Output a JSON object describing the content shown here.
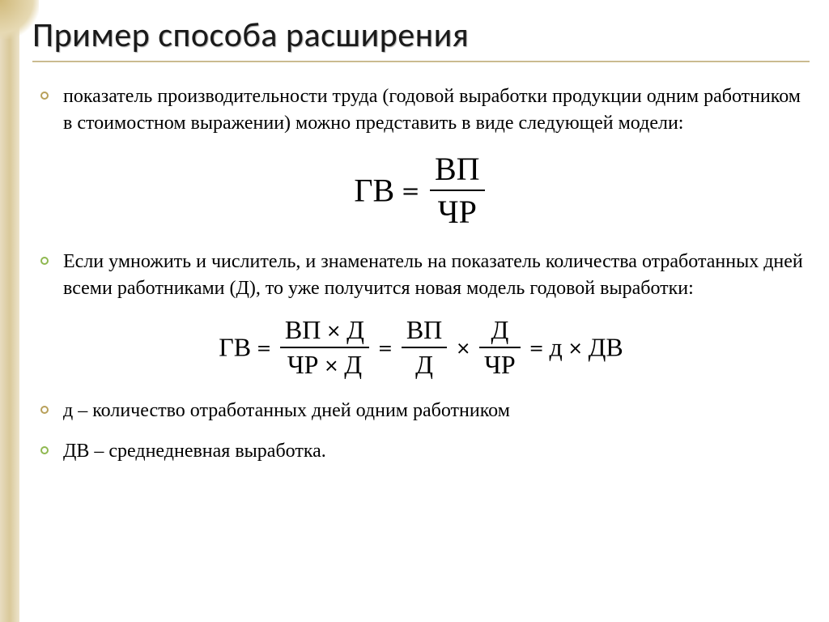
{
  "title": "Пример способа расширения",
  "bullets": [
    "показатель производительности труда (годовой выработки продукции одним работником в стоимостном выражении) можно представить в виде следующей модели:",
    "Если умножить и числитель, и знаменатель на показатель количества отработанных дней всеми работниками (Д), то уже получится новая модель годовой выработки:",
    "д – количество отработанных дней одним работником",
    "ДВ – среднедневная выработка."
  ],
  "formula1": {
    "lhs": "ГВ",
    "num": "ВП",
    "den": "ЧР"
  },
  "formula2": {
    "lhs": "ГВ",
    "step1_num": "ВП × Д",
    "step1_den": "ЧР × Д",
    "step2a_num": "ВП",
    "step2a_den": "Д",
    "step2b_num": "Д",
    "step2b_den": "ЧР",
    "result": "д × ДВ"
  },
  "style": {
    "bullet_colors": [
      "#b8a05a",
      "#8fb850",
      "#b8a05a",
      "#8fb850"
    ],
    "title_fontsize": 42,
    "body_fontsize": 24,
    "formula1_fontsize": 40,
    "formula2_fontsize": 32,
    "accent_color": "#d9c99a",
    "background_color": "#ffffff",
    "text_color": "#000000"
  }
}
